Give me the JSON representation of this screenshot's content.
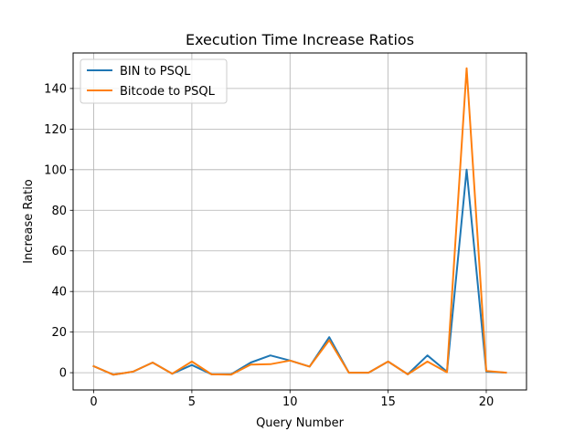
{
  "chart_data": {
    "type": "line",
    "title": "Execution Time Increase Ratios",
    "xlabel": "Query Number",
    "ylabel": "Increase Ratio",
    "xlim": [
      -1.05,
      22.05
    ],
    "ylim": [
      -8.5,
      157.5
    ],
    "x_ticks": [
      0,
      5,
      10,
      15,
      20
    ],
    "y_ticks": [
      0,
      20,
      40,
      60,
      80,
      100,
      120,
      140
    ],
    "grid": true,
    "legend_position": "top-left",
    "x": [
      0,
      1,
      2,
      3,
      4,
      5,
      6,
      7,
      8,
      9,
      10,
      11,
      12,
      13,
      14,
      15,
      16,
      17,
      18,
      19,
      20,
      21
    ],
    "series": [
      {
        "name": "BIN to PSQL",
        "color": "#1f77b4",
        "values": [
          3.2,
          -1.0,
          0.5,
          5.0,
          -0.5,
          3.8,
          -0.8,
          -0.8,
          5.0,
          8.5,
          6.0,
          3.0,
          17.5,
          0.0,
          0.0,
          5.5,
          -0.8,
          8.5,
          0.5,
          100.0,
          0.5,
          0.0
        ]
      },
      {
        "name": "Bitcode to PSQL",
        "color": "#ff7f0e",
        "values": [
          3.2,
          -1.0,
          0.5,
          5.0,
          -0.5,
          5.5,
          -0.8,
          -1.0,
          4.0,
          4.2,
          6.0,
          3.0,
          16.0,
          0.0,
          0.0,
          5.5,
          -0.8,
          5.5,
          0.2,
          150.0,
          0.8,
          0.0
        ]
      }
    ]
  }
}
